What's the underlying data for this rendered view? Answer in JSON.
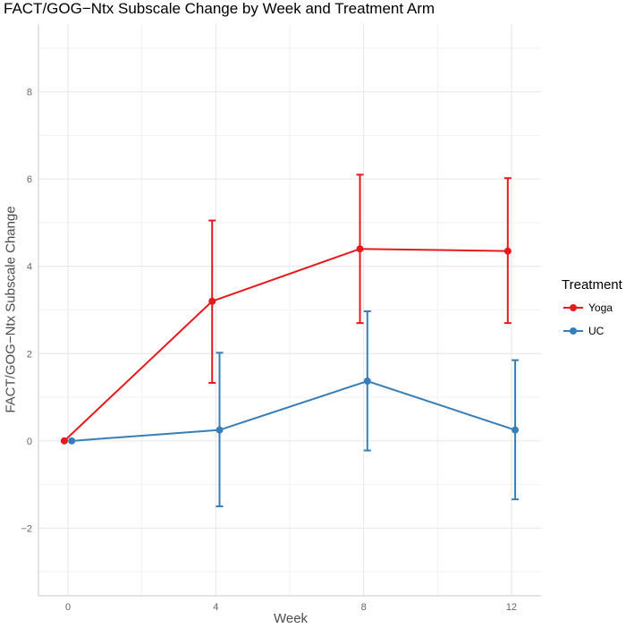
{
  "chart_data": {
    "type": "line",
    "title": "FACT/GOG−Ntx Subscale Change by Week and Treatment Arm",
    "xlabel": "Week",
    "ylabel": "FACT/GOG−Ntx Subscale Change",
    "x_ticks": [
      "0",
      "4",
      "8",
      "12"
    ],
    "y_ticks": [
      "−2",
      "0",
      "2",
      "4",
      "6",
      "8"
    ],
    "xlim": [
      -0.8,
      12.8
    ],
    "ylim": [
      -3.55,
      9.55
    ],
    "grid": true,
    "legend": {
      "title": "Treatment",
      "position": "right"
    },
    "series": [
      {
        "name": "Yoga",
        "color": "#e41a1c",
        "x": [
          0,
          4,
          8,
          12
        ],
        "y": [
          0.0,
          3.2,
          4.4,
          4.35
        ],
        "lower": [
          null,
          1.33,
          2.7,
          2.7
        ],
        "upper": [
          null,
          5.05,
          6.1,
          6.02
        ]
      },
      {
        "name": "UC",
        "color": "#377eb8",
        "x": [
          0,
          4,
          8,
          12
        ],
        "y": [
          0.0,
          0.25,
          1.37,
          0.25
        ],
        "lower": [
          null,
          -1.5,
          -0.22,
          -1.34
        ],
        "upper": [
          null,
          2.02,
          2.97,
          1.85
        ]
      }
    ]
  }
}
